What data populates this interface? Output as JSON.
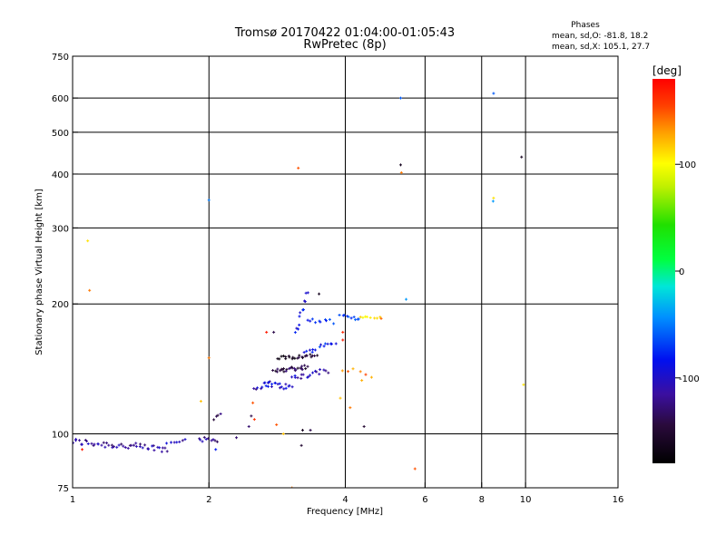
{
  "chart_data": {
    "type": "scatter",
    "title": "Tromsø 20170422 01:04:00-01:05:43",
    "subtitle": "RwPretec (8p)",
    "xlabel": "Frequency [MHz]",
    "ylabel": "Stationary phase Virtual Height [km]",
    "x_scale": "log2",
    "y_scale": "log",
    "xlim": [
      1,
      16
    ],
    "ylim": [
      75,
      750
    ],
    "x_ticks": [
      {
        "value": 1,
        "label": "1"
      },
      {
        "value": 2,
        "label": "2"
      },
      {
        "value": 4,
        "label": "4"
      },
      {
        "value": 6,
        "label": "6"
      },
      {
        "value": 8,
        "label": "8"
      },
      {
        "value": 10,
        "label": "10"
      },
      {
        "value": 16,
        "label": "16"
      }
    ],
    "y_ticks": [
      {
        "value": 75,
        "label": "75"
      },
      {
        "value": 100,
        "label": "100"
      },
      {
        "value": 200,
        "label": "200"
      },
      {
        "value": 300,
        "label": "300"
      },
      {
        "value": 400,
        "label": "400"
      },
      {
        "value": 500,
        "label": "500"
      },
      {
        "value": 600,
        "label": "600"
      },
      {
        "value": 750,
        "label": "750"
      }
    ],
    "grid_x": [
      2,
      4,
      6,
      8,
      10
    ],
    "grid_y": [
      100,
      200,
      300,
      400,
      500,
      600
    ],
    "grid": true,
    "stats": {
      "heading": "Phases",
      "line1": "mean, sd,O: -81.8, 18.2",
      "line2": "mean, sd,X: 105.1, 27.7"
    },
    "colorbar": {
      "label": "[deg]",
      "range": [
        -180,
        180
      ],
      "ticks": [
        {
          "value": 100,
          "label": "100"
        },
        {
          "value": 0,
          "label": "0"
        },
        {
          "value": -100,
          "label": "-100"
        }
      ]
    },
    "point_groups": [
      {
        "x": [
          1.0,
          1.62
        ],
        "y": [
          96,
          92
        ],
        "n": 48,
        "phase": -115,
        "jitter": 1.8
      },
      {
        "x": [
          1.62,
          1.78
        ],
        "y": [
          95,
          98
        ],
        "n": 7,
        "phase": -110,
        "jitter": 1.2
      },
      {
        "x": [
          1.9,
          2.08
        ],
        "y": [
          97,
          97
        ],
        "n": 10,
        "phase": -120,
        "jitter": 1.2
      },
      {
        "x": [
          2.05,
          2.12
        ],
        "y": [
          108,
          112
        ],
        "n": 4,
        "phase": -140,
        "jitter": 2.0
      },
      {
        "x": [
          2.5,
          2.72
        ],
        "y": [
          127,
          131
        ],
        "n": 8,
        "phase": -110,
        "jitter": 1.5
      },
      {
        "x": [
          2.65,
          3.05
        ],
        "y": [
          131,
          128
        ],
        "n": 18,
        "phase": -95,
        "jitter": 2.0
      },
      {
        "x": [
          2.78,
          3.3
        ],
        "y": [
          140,
          143
        ],
        "n": 26,
        "phase": -145,
        "jitter": 1.8
      },
      {
        "x": [
          2.85,
          3.45
        ],
        "y": [
          150,
          152
        ],
        "n": 24,
        "phase": -155,
        "jitter": 1.5
      },
      {
        "x": [
          3.05,
          3.65
        ],
        "y": [
          134,
          140
        ],
        "n": 18,
        "phase": -105,
        "jitter": 2.2
      },
      {
        "x": [
          3.25,
          3.8
        ],
        "y": [
          155,
          163
        ],
        "n": 14,
        "phase": -80,
        "jitter": 2.2
      },
      {
        "x": [
          3.1,
          3.3
        ],
        "y": [
          170,
          214
        ],
        "n": 12,
        "phase": -90,
        "jitter": 3.0
      },
      {
        "x": [
          3.3,
          3.75
        ],
        "y": [
          183,
          182
        ],
        "n": 10,
        "phase": -80,
        "jitter": 2.0
      },
      {
        "x": [
          3.9,
          4.3
        ],
        "y": [
          188,
          184
        ],
        "n": 10,
        "phase": -75,
        "jitter": 1.5
      },
      {
        "x": [
          4.3,
          4.75
        ],
        "y": [
          187,
          186
        ],
        "n": 8,
        "phase": 105,
        "jitter": 1.0
      },
      {
        "x": [
          3.95,
          4.55
        ],
        "y": [
          141,
          136
        ],
        "n": 6,
        "phase": 135,
        "jitter": 3.0
      }
    ],
    "points": [
      {
        "x": 1.08,
        "y": 280,
        "phase": 110
      },
      {
        "x": 1.09,
        "y": 215,
        "phase": 140
      },
      {
        "x": 1.05,
        "y": 92,
        "phase": 170
      },
      {
        "x": 2.0,
        "y": 348,
        "phase": -50
      },
      {
        "x": 2.0,
        "y": 150,
        "phase": 140
      },
      {
        "x": 1.92,
        "y": 119,
        "phase": 120
      },
      {
        "x": 2.07,
        "y": 92,
        "phase": -80
      },
      {
        "x": 2.3,
        "y": 98,
        "phase": -130
      },
      {
        "x": 2.48,
        "y": 110,
        "phase": -140
      },
      {
        "x": 2.45,
        "y": 104,
        "phase": -130
      },
      {
        "x": 2.5,
        "y": 118,
        "phase": 150
      },
      {
        "x": 2.52,
        "y": 108,
        "phase": 160
      },
      {
        "x": 2.82,
        "y": 105,
        "phase": 150
      },
      {
        "x": 2.92,
        "y": 100,
        "phase": 120
      },
      {
        "x": 2.68,
        "y": 172,
        "phase": 170
      },
      {
        "x": 2.78,
        "y": 172,
        "phase": -140
      },
      {
        "x": 3.05,
        "y": 75,
        "phase": 140
      },
      {
        "x": 3.2,
        "y": 94,
        "phase": -150
      },
      {
        "x": 3.22,
        "y": 102,
        "phase": -160
      },
      {
        "x": 3.35,
        "y": 102,
        "phase": -140
      },
      {
        "x": 3.15,
        "y": 413,
        "phase": 150
      },
      {
        "x": 3.5,
        "y": 211,
        "phase": -160
      },
      {
        "x": 3.95,
        "y": 172,
        "phase": 165
      },
      {
        "x": 3.95,
        "y": 165,
        "phase": 170
      },
      {
        "x": 3.9,
        "y": 121,
        "phase": 120
      },
      {
        "x": 4.1,
        "y": 115,
        "phase": 140
      },
      {
        "x": 4.4,
        "y": 104,
        "phase": -150
      },
      {
        "x": 4.35,
        "y": 133,
        "phase": 125
      },
      {
        "x": 4.8,
        "y": 185,
        "phase": 145
      },
      {
        "x": 5.3,
        "y": 600,
        "phase": -60
      },
      {
        "x": 5.3,
        "y": 420,
        "phase": -160
      },
      {
        "x": 5.32,
        "y": 403,
        "phase": 140
      },
      {
        "x": 5.45,
        "y": 205,
        "phase": -40
      },
      {
        "x": 5.7,
        "y": 83,
        "phase": 150
      },
      {
        "x": 8.5,
        "y": 615,
        "phase": -60
      },
      {
        "x": 8.5,
        "y": 352,
        "phase": 110
      },
      {
        "x": 8.48,
        "y": 346,
        "phase": -40
      },
      {
        "x": 9.8,
        "y": 438,
        "phase": -160
      },
      {
        "x": 9.9,
        "y": 130,
        "phase": 110
      }
    ]
  }
}
